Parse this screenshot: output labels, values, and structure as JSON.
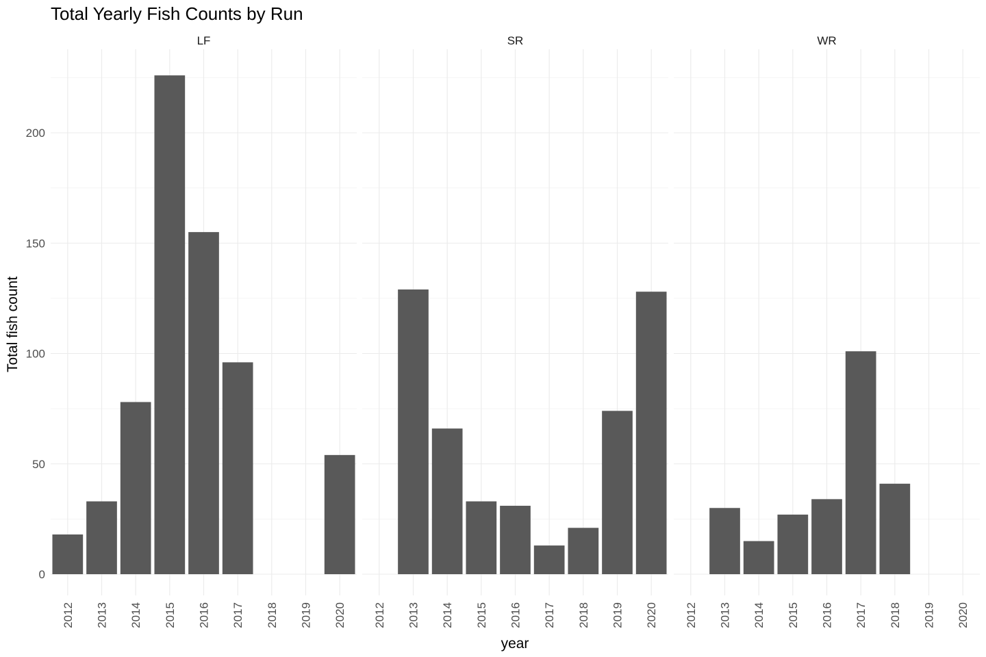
{
  "chart_data": {
    "type": "bar",
    "title": "Total Yearly Fish Counts by Run",
    "xlabel": "year",
    "ylabel": "Total fish count",
    "ylim": [
      0,
      226
    ],
    "yticks": [
      0,
      50,
      100,
      150,
      200
    ],
    "categories": [
      "2012",
      "2013",
      "2014",
      "2015",
      "2016",
      "2017",
      "2018",
      "2019",
      "2020"
    ],
    "bar_color": "#595959",
    "grid": true,
    "facets": [
      {
        "name": "LF",
        "values": [
          18,
          33,
          78,
          226,
          155,
          96,
          null,
          null,
          54
        ]
      },
      {
        "name": "SR",
        "values": [
          null,
          129,
          66,
          33,
          31,
          13,
          21,
          74,
          128
        ]
      },
      {
        "name": "WR",
        "values": [
          null,
          30,
          15,
          27,
          34,
          101,
          41,
          null,
          null
        ]
      }
    ]
  }
}
